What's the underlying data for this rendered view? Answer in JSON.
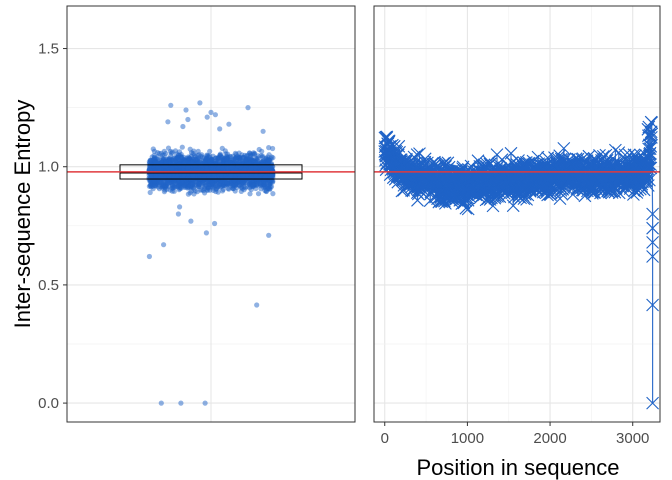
{
  "chart_data": [
    {
      "type": "scatter",
      "variant": "jittered strip with boxplot",
      "ylabel": "Inter-sequence Entropy",
      "xlabel": "",
      "ylim": [
        -0.08,
        1.68
      ],
      "yticks": [
        0.0,
        0.5,
        1.0,
        1.5
      ],
      "ytick_labels": [
        "0.0",
        "0.5",
        "1.0",
        "1.5"
      ],
      "grid": true,
      "reference_line": {
        "y": 0.978,
        "color": "#e03a3e"
      },
      "point_color": "#1f63c7",
      "boxplot": {
        "q1": 0.948,
        "median": 0.975,
        "q3": 1.008
      },
      "bulk_range": [
        0.85,
        1.12
      ],
      "outliers": [
        1.27,
        1.26,
        1.25,
        1.24,
        1.23,
        1.22,
        1.21,
        1.2,
        1.19,
        1.18,
        1.17,
        1.16,
        1.15,
        0.83,
        0.8,
        0.77,
        0.76,
        0.72,
        0.71,
        0.67,
        0.62,
        0.415,
        0.0,
        0.0,
        0.0
      ]
    },
    {
      "type": "line",
      "marker": "x",
      "xlabel": "Position in sequence",
      "ylabel": "",
      "xlim": [
        -130,
        3330
      ],
      "ylim": [
        -0.08,
        1.68
      ],
      "xticks": [
        0,
        1000,
        2000,
        3000
      ],
      "xtick_labels": [
        "0",
        "1000",
        "2000",
        "3000"
      ],
      "grid": true,
      "reference_line": {
        "y": 0.978,
        "color": "#e03a3e"
      },
      "series_color": "#1f63c7",
      "trend": [
        {
          "x": 0,
          "y": 1.1
        },
        {
          "x": 100,
          "y": 1.02
        },
        {
          "x": 300,
          "y": 0.97
        },
        {
          "x": 600,
          "y": 0.94
        },
        {
          "x": 1000,
          "y": 0.92
        },
        {
          "x": 1400,
          "y": 0.94
        },
        {
          "x": 1800,
          "y": 0.95
        },
        {
          "x": 2200,
          "y": 0.97
        },
        {
          "x": 2600,
          "y": 0.96
        },
        {
          "x": 3000,
          "y": 0.97
        },
        {
          "x": 3150,
          "y": 0.98
        },
        {
          "x": 3200,
          "y": 1.05
        },
        {
          "x": 3230,
          "y": 1.15
        }
      ],
      "tail_points": [
        {
          "x": 3240,
          "y": 0.8
        },
        {
          "x": 3240,
          "y": 0.74
        },
        {
          "x": 3240,
          "y": 0.68
        },
        {
          "x": 3240,
          "y": 0.62
        },
        {
          "x": 3240,
          "y": 0.415
        },
        {
          "x": 3240,
          "y": 0.0
        }
      ]
    }
  ]
}
